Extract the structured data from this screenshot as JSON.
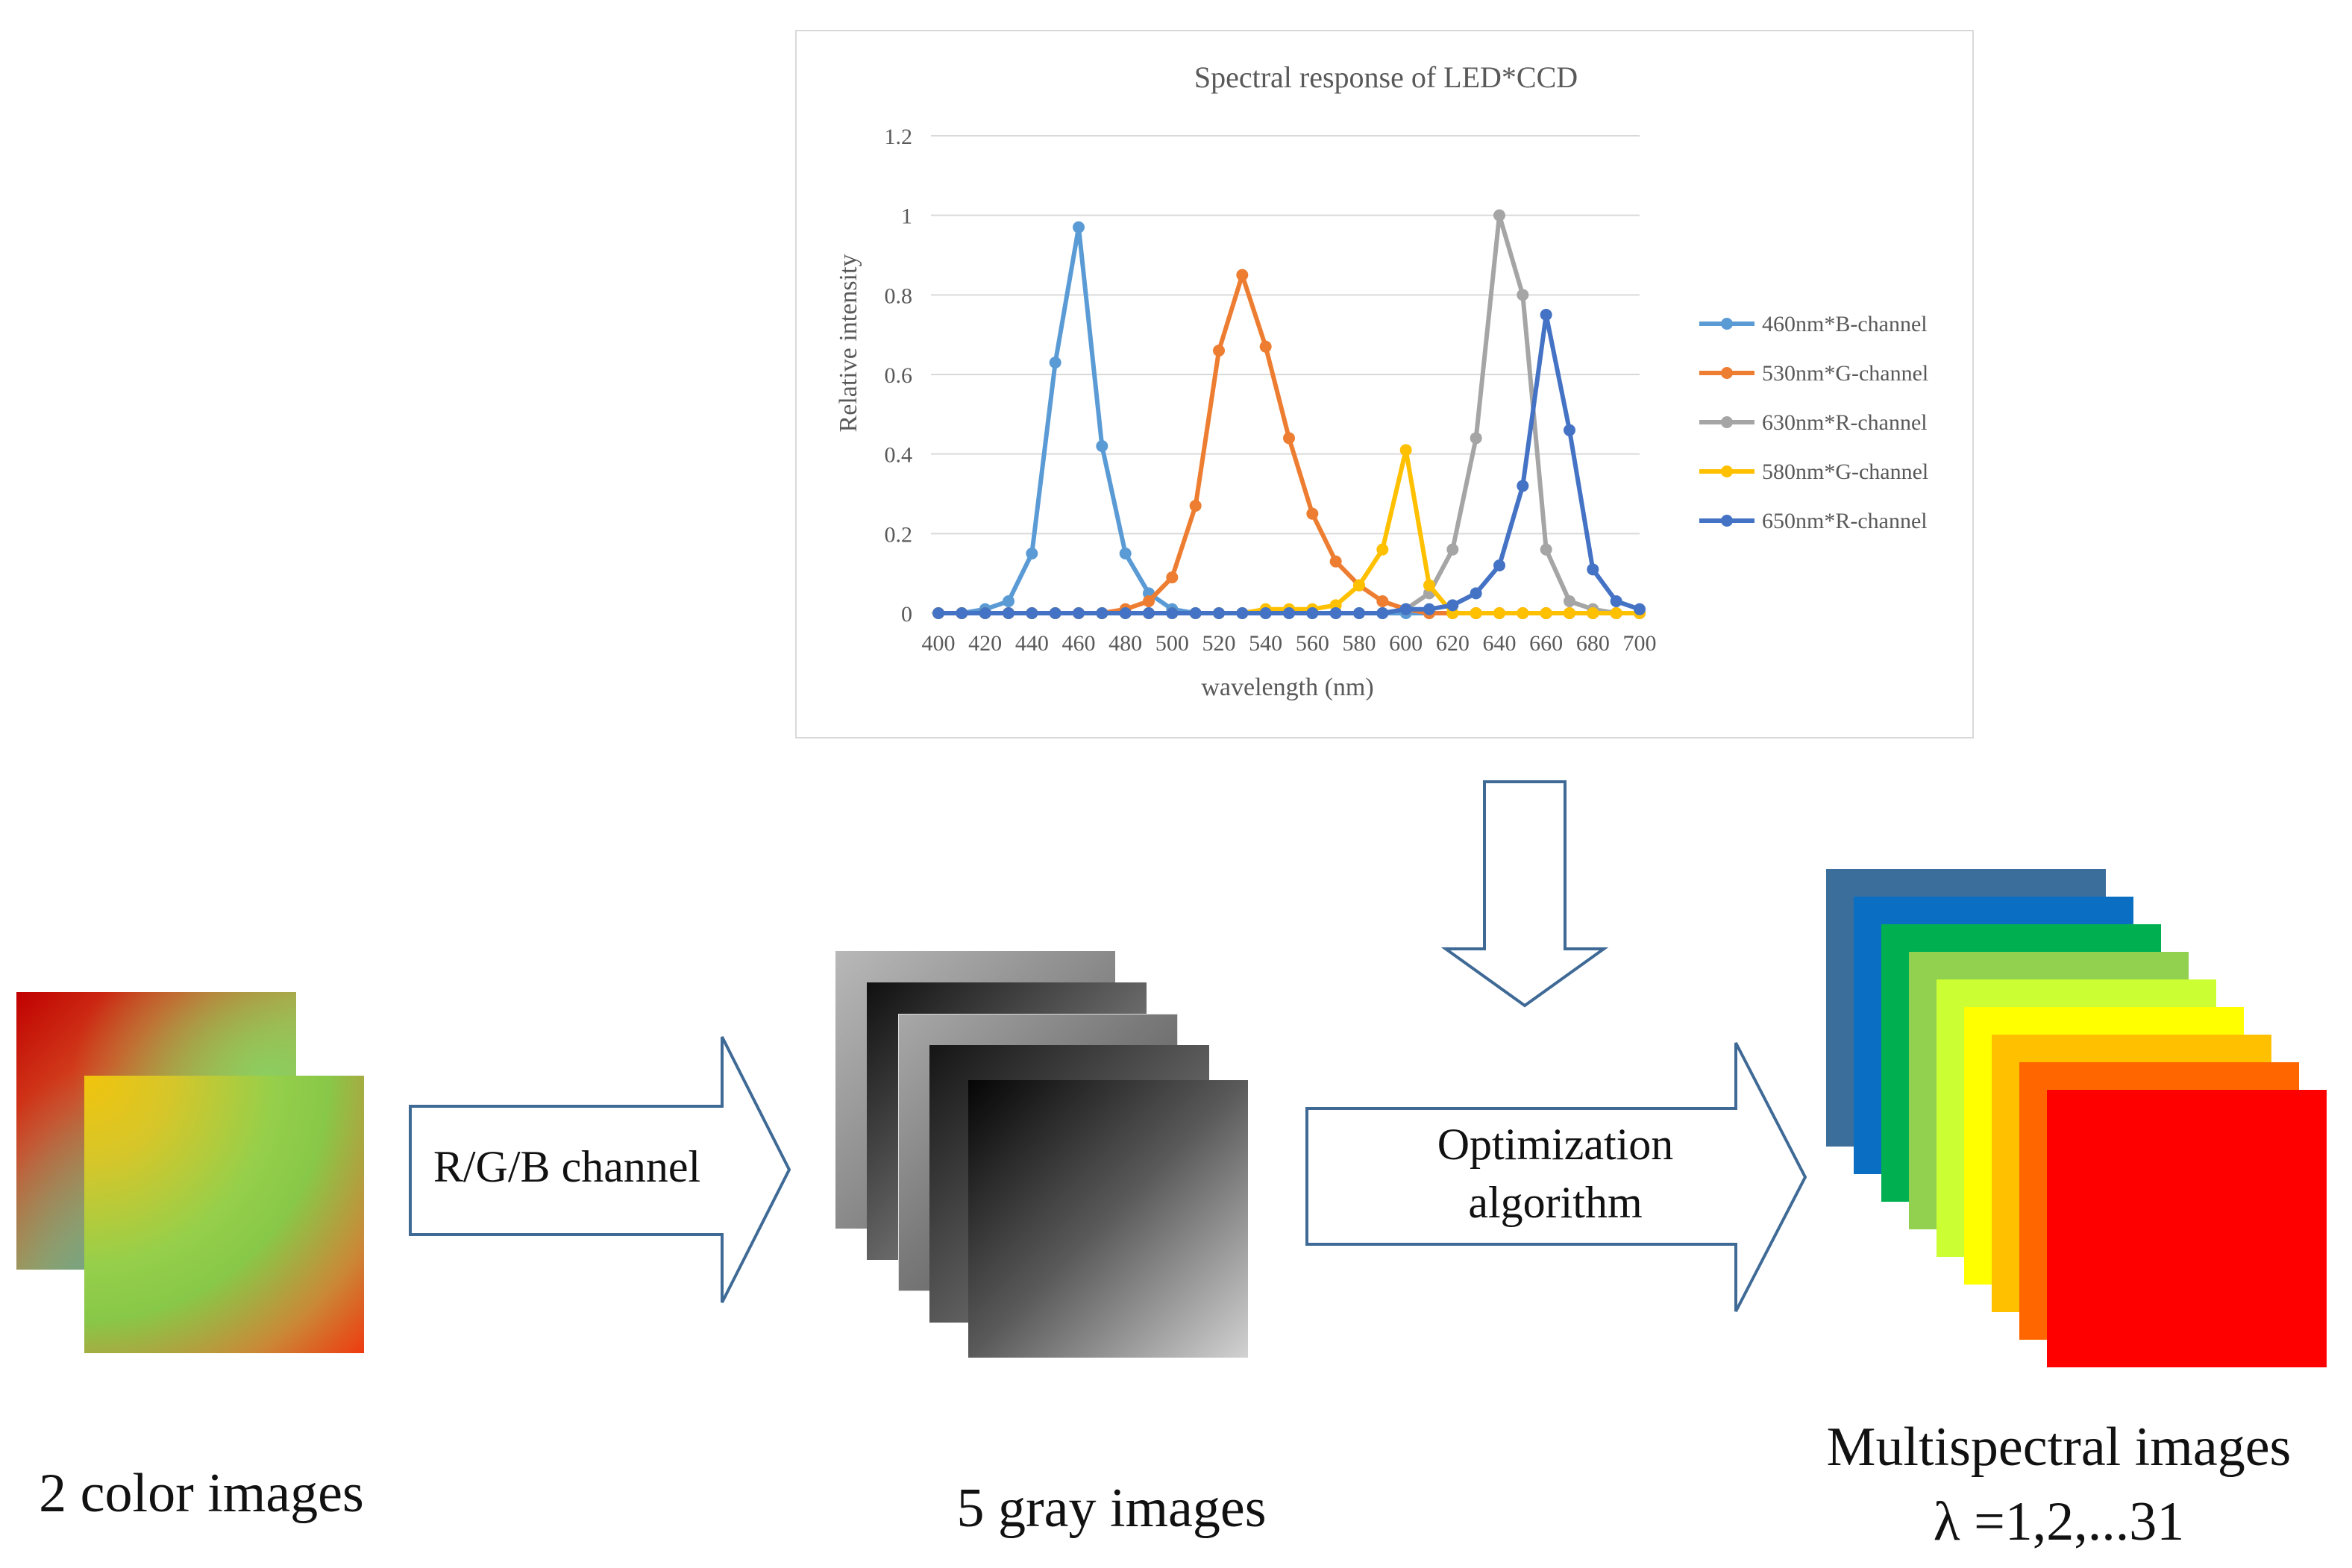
{
  "chart": {
    "title": "Spectral response of LED*CCD",
    "xlabel": "wavelength (nm)",
    "ylabel": "Relative intensity"
  },
  "chart_data": {
    "type": "line",
    "title": "Spectral response of LED*CCD",
    "xlabel": "wavelength (nm)",
    "ylabel": "Relative intensity",
    "x": [
      400,
      410,
      420,
      430,
      440,
      450,
      460,
      470,
      480,
      490,
      500,
      510,
      520,
      530,
      540,
      550,
      560,
      570,
      580,
      590,
      600,
      610,
      620,
      630,
      640,
      650,
      660,
      670,
      680,
      690,
      700
    ],
    "xlim": [
      400,
      700
    ],
    "ylim": [
      0,
      1.2
    ],
    "xticks": [
      "400",
      "420",
      "440",
      "460",
      "480",
      "500",
      "520",
      "540",
      "560",
      "580",
      "600",
      "620",
      "640",
      "660",
      "680",
      "700"
    ],
    "yticks": [
      "0",
      "0.2",
      "0.4",
      "0.6",
      "0.8",
      "1",
      "1.2"
    ],
    "grid": true,
    "legend_position": "right",
    "series": [
      {
        "name": "460nm*B-channel",
        "color": "#5b9bd5",
        "values": [
          0,
          0,
          0.01,
          0.03,
          0.15,
          0.63,
          0.97,
          0.42,
          0.15,
          0.05,
          0.01,
          0,
          0,
          0,
          0,
          0,
          0,
          0,
          0,
          0,
          0,
          0,
          0,
          0,
          0,
          0,
          0,
          0,
          0,
          0,
          0
        ]
      },
      {
        "name": "530nm*G-channel",
        "color": "#ed7d31",
        "values": [
          0,
          0,
          0,
          0,
          0,
          0,
          0,
          0,
          0.01,
          0.03,
          0.09,
          0.27,
          0.66,
          0.85,
          0.67,
          0.44,
          0.25,
          0.13,
          0.07,
          0.03,
          0.01,
          0,
          0,
          0,
          0,
          0,
          0,
          0,
          0,
          0,
          0
        ]
      },
      {
        "name": "630nm*R-channel",
        "color": "#a5a5a5",
        "values": [
          0,
          0,
          0,
          0,
          0,
          0,
          0,
          0,
          0,
          0,
          0,
          0,
          0,
          0,
          0,
          0,
          0,
          0,
          0,
          0,
          0.01,
          0.05,
          0.16,
          0.44,
          1.0,
          0.8,
          0.16,
          0.03,
          0.01,
          0,
          0
        ]
      },
      {
        "name": "580nm*G-channel",
        "color": "#ffc000",
        "values": [
          0,
          0,
          0,
          0,
          0,
          0,
          0,
          0,
          0,
          0,
          0,
          0,
          0,
          0,
          0.01,
          0.01,
          0.01,
          0.02,
          0.07,
          0.16,
          0.41,
          0.07,
          0,
          0,
          0,
          0,
          0,
          0,
          0,
          0,
          0
        ]
      },
      {
        "name": "650nm*R-channel",
        "color": "#4472c4",
        "values": [
          0,
          0,
          0,
          0,
          0,
          0,
          0,
          0,
          0,
          0,
          0,
          0,
          0,
          0,
          0,
          0,
          0,
          0,
          0,
          0,
          0.01,
          0.01,
          0.02,
          0.05,
          0.12,
          0.32,
          0.75,
          0.46,
          0.11,
          0.03,
          0.01
        ]
      }
    ]
  },
  "diagram": {
    "arrow1_label": "R/G/B channel",
    "arrow2_label_line1": "Optimization",
    "arrow2_label_line2": "algorithm",
    "caption_color": "2 color images",
    "caption_gray": "5 gray images",
    "caption_multi_line1": "Multispectral images",
    "caption_multi_line2": "λ =1,2,...31"
  },
  "colors": {
    "arrow_stroke": "#3f6a96",
    "multispectral_layers": [
      "#3c6e9c",
      "#0a6fc2",
      "#00b050",
      "#92d050",
      "#ccff33",
      "#ffff00",
      "#ffc000",
      "#ff6600",
      "#ff0000"
    ]
  }
}
